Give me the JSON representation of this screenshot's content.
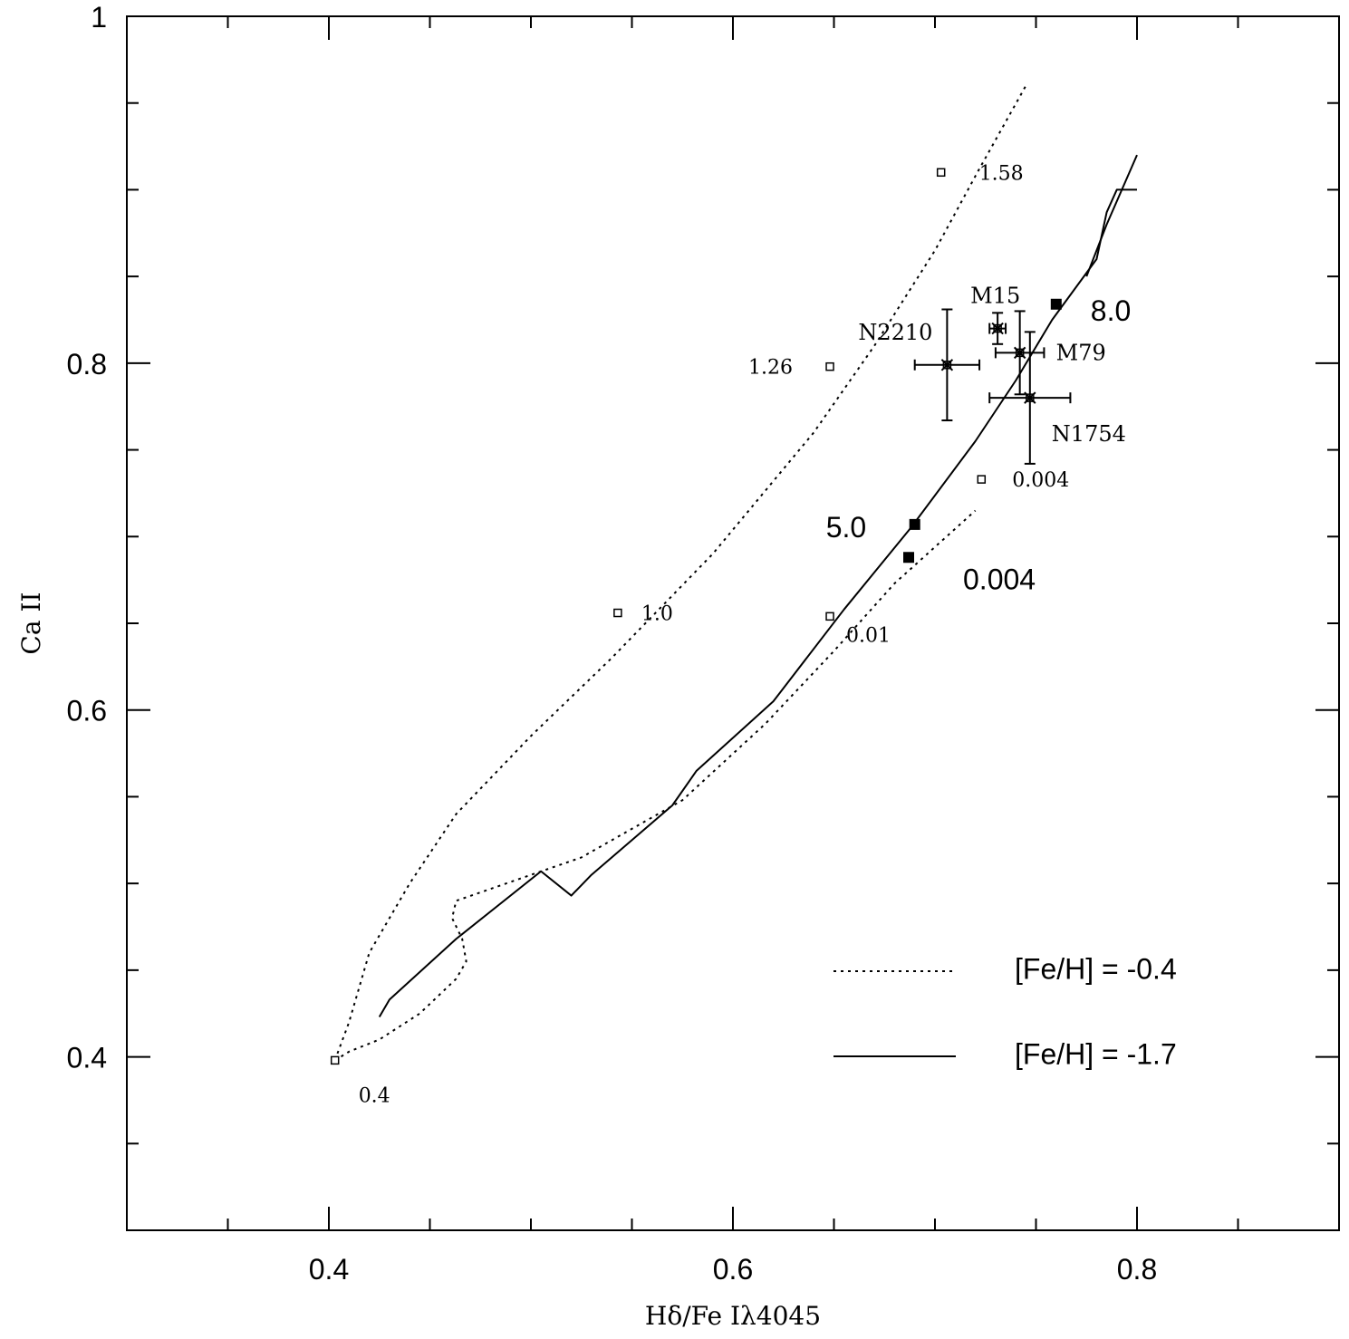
{
  "chart_data": {
    "type": "line",
    "title": "",
    "xlabel": "Hδ/Fe Iλ4045",
    "ylabel": "Ca II",
    "xlim": [
      0.3,
      0.9
    ],
    "ylim": [
      0.3,
      1.0
    ],
    "x_ticks": [
      "0.4",
      "0.6",
      "0.8"
    ],
    "y_ticks": [
      "0.4",
      "0.6",
      "0.8",
      "1"
    ],
    "x_tick_values": [
      0.4,
      0.6,
      0.8
    ],
    "y_tick_values": [
      0.4,
      0.6,
      0.8,
      1.0
    ],
    "x_minor_step": 0.05,
    "y_minor_step": 0.05,
    "grid": false,
    "legend_position": "bottom-right",
    "series": [
      {
        "name": "[Fe/H] = -0.4",
        "style": "dotted",
        "x": [
          0.403,
          0.41,
          0.425,
          0.445,
          0.463,
          0.468,
          0.466,
          0.461,
          0.463,
          0.525,
          0.575,
          0.616,
          0.65,
          0.68,
          0.72
        ],
        "y": [
          0.398,
          0.403,
          0.41,
          0.425,
          0.445,
          0.455,
          0.468,
          0.48,
          0.49,
          0.515,
          0.548,
          0.592,
          0.634,
          0.673,
          0.715
        ],
        "segment2_x": [
          0.403,
          0.41,
          0.42,
          0.44,
          0.463,
          0.5,
          0.54,
          0.59,
          0.64,
          0.67,
          0.7,
          0.721,
          0.745
        ],
        "segment2_y": [
          0.398,
          0.42,
          0.46,
          0.5,
          0.54,
          0.585,
          0.63,
          0.69,
          0.76,
          0.81,
          0.865,
          0.91,
          0.96
        ],
        "markers": [
          {
            "x": 0.403,
            "y": 0.398,
            "label": "0.4"
          },
          {
            "x": 0.543,
            "y": 0.656,
            "label": "1.0"
          },
          {
            "x": 0.648,
            "y": 0.798,
            "label": "1.26"
          },
          {
            "x": 0.703,
            "y": 0.91,
            "label": "1.58"
          },
          {
            "x": 0.648,
            "y": 0.654,
            "label": "0.01"
          },
          {
            "x": 0.723,
            "y": 0.733,
            "label": "0.004"
          }
        ]
      },
      {
        "name": "[Fe/H] = -1.7",
        "style": "solid",
        "x": [
          0.425,
          0.43,
          0.463,
          0.505,
          0.52,
          0.53,
          0.57,
          0.582,
          0.62,
          0.655,
          0.688,
          0.72,
          0.74,
          0.758,
          0.78,
          0.785,
          0.79,
          0.8
        ],
        "y": [
          0.423,
          0.433,
          0.468,
          0.507,
          0.493,
          0.505,
          0.545,
          0.565,
          0.605,
          0.658,
          0.705,
          0.755,
          0.79,
          0.825,
          0.86,
          0.887,
          0.9,
          0.9
        ],
        "segment2_x": [
          0.8,
          0.785,
          0.775
        ],
        "segment2_y": [
          0.92,
          0.88,
          0.85
        ],
        "markers": [
          {
            "x": 0.69,
            "y": 0.707,
            "label": "5.0"
          },
          {
            "x": 0.76,
            "y": 0.834,
            "label": "8.0"
          },
          {
            "x": 0.687,
            "y": 0.688,
            "label": "0.004"
          }
        ]
      }
    ],
    "clusters": [
      {
        "name": "N2210",
        "x": 0.706,
        "y": 0.799,
        "xerr": 0.016,
        "yerr": 0.032
      },
      {
        "name": "M15",
        "x": 0.731,
        "y": 0.82,
        "xerr": 0.004,
        "yerr": 0.009
      },
      {
        "name": "M79",
        "x": 0.742,
        "y": 0.806,
        "xerr": 0.012,
        "yerr": 0.024
      },
      {
        "name": "N1754",
        "x": 0.747,
        "y": 0.78,
        "xerr": 0.02,
        "yerr": 0.038
      }
    ]
  }
}
